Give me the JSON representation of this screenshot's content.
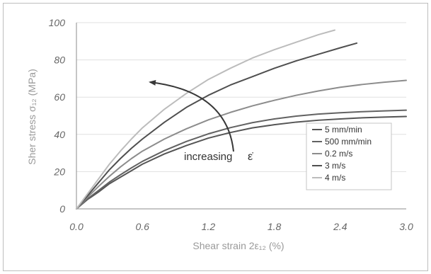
{
  "chart_data": {
    "type": "line",
    "title": "",
    "xlabel": "Shear strain 2ε₁₂ (%)",
    "ylabel": "Sher stress σ₁₂ (MPa)",
    "xlim": [
      0,
      3
    ],
    "ylim": [
      0,
      100
    ],
    "xticks": [
      "0.0",
      "0.6",
      "1.2",
      "1.8",
      "2.4",
      "3.0"
    ],
    "yticks": [
      "0",
      "20",
      "40",
      "60",
      "80",
      "100"
    ],
    "grid": "horizontal",
    "legend_position": "right",
    "annotation": {
      "text": "increasing",
      "symbol": "ε̇",
      "arrow": true
    },
    "colors": {
      "5 mm/min": "#555555",
      "500 mm/min": "#626262",
      "0.2 m/s": "#8c8c8c",
      "3 m/s": "#4f4f4f",
      "4 m/s": "#bcbcbc"
    },
    "series": [
      {
        "name": "5 mm/min",
        "x": [
          0,
          0.1,
          0.2,
          0.3,
          0.4,
          0.5,
          0.6,
          0.8,
          1.0,
          1.2,
          1.4,
          1.6,
          1.8,
          2.0,
          2.2,
          2.4,
          2.6,
          2.8,
          3.0
        ],
        "values": [
          0,
          5,
          9,
          13.5,
          17,
          20.5,
          24,
          29.5,
          34,
          38,
          41,
          43.5,
          45.2,
          46.6,
          47.6,
          48.3,
          48.9,
          49.3,
          49.6
        ]
      },
      {
        "name": "500 mm/min",
        "x": [
          0,
          0.1,
          0.2,
          0.3,
          0.4,
          0.5,
          0.6,
          0.8,
          1.0,
          1.2,
          1.4,
          1.6,
          1.8,
          2.0,
          2.2,
          2.4,
          2.6,
          2.8,
          3.0
        ],
        "values": [
          0,
          5.3,
          9.8,
          14.4,
          18.3,
          22,
          25.5,
          31.3,
          36.2,
          40.3,
          43.6,
          46.3,
          48.3,
          49.8,
          50.9,
          51.6,
          52.2,
          52.6,
          53
        ]
      },
      {
        "name": "0.2 m/s",
        "x": [
          0,
          0.1,
          0.2,
          0.3,
          0.4,
          0.5,
          0.6,
          0.8,
          1.0,
          1.2,
          1.4,
          1.6,
          1.8,
          2.0,
          2.2,
          2.4,
          2.6,
          2.8,
          3.0
        ],
        "values": [
          0,
          6.2,
          12,
          17.5,
          22.5,
          27,
          31,
          37.5,
          43,
          47.8,
          51.8,
          55.3,
          58.3,
          61,
          63.3,
          65.3,
          66.8,
          68,
          69
        ]
      },
      {
        "name": "3 m/s",
        "x": [
          0,
          0.1,
          0.2,
          0.3,
          0.4,
          0.5,
          0.6,
          0.8,
          1.0,
          1.2,
          1.4,
          1.6,
          1.8,
          2.0,
          2.2,
          2.4,
          2.55
        ],
        "values": [
          0,
          7,
          14,
          21,
          27,
          32.5,
          37.5,
          46.5,
          54.5,
          61,
          66.5,
          71,
          75.5,
          79.5,
          83,
          86.5,
          89
        ]
      },
      {
        "name": "4 m/s",
        "x": [
          0,
          0.1,
          0.2,
          0.3,
          0.4,
          0.5,
          0.6,
          0.8,
          1.0,
          1.2,
          1.4,
          1.6,
          1.8,
          2.0,
          2.2,
          2.35
        ],
        "values": [
          0,
          8,
          16,
          24,
          31,
          37.5,
          43.5,
          53.5,
          62,
          69.5,
          75.5,
          81,
          85.5,
          89.5,
          93.5,
          96
        ]
      }
    ]
  }
}
